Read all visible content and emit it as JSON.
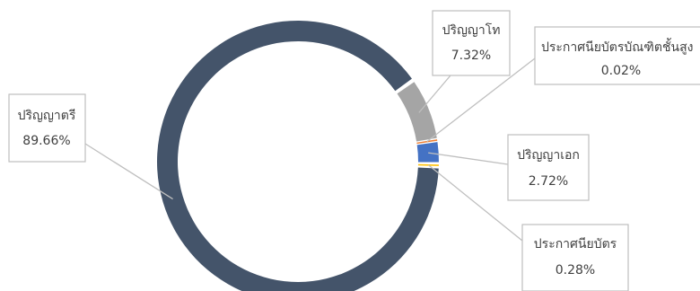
{
  "chart_data": {
    "type": "pie",
    "donut": true,
    "title": "",
    "slices": [
      {
        "label": "ปริญญาตรี",
        "value": 89.66,
        "value_label": "89.66%",
        "color": "#44546A"
      },
      {
        "label": "ปริญญาโท",
        "value": 7.32,
        "value_label": "7.32%",
        "color": "#A5A5A5"
      },
      {
        "label": "ประกาศนียบัตรบัณฑิตชั้นสูง",
        "value": 0.02,
        "value_label": "0.02%",
        "color": "#ED7D31"
      },
      {
        "label": "ปริญญาเอก",
        "value": 2.72,
        "value_label": "2.72%",
        "color": "#4472C4"
      },
      {
        "label": "ประกาศนียบัตร",
        "value": 0.28,
        "value_label": "0.28%",
        "color": "#FFC000"
      }
    ],
    "legend": "none"
  }
}
